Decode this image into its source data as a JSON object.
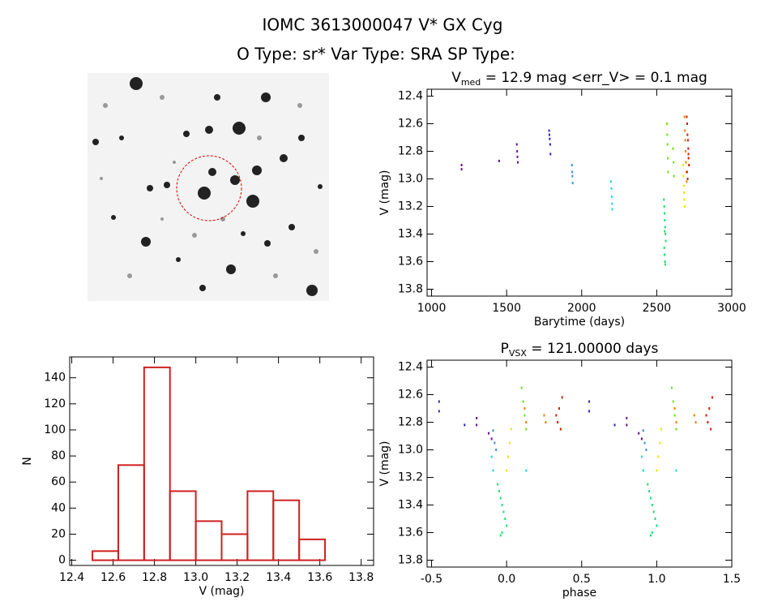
{
  "title": "IOMC 3613000047    V* GX Cyg",
  "subtitle": "O Type: sr*  Var Type: SRA  SP Type:",
  "chart_data": [
    {
      "type": "scatter",
      "title": [
        "V",
        "med",
        " = 12.9 mag <err_V> = 0.1 mag"
      ],
      "xlabel": "Barytime (days)",
      "ylabel": "V (mag)",
      "xlim": [
        970,
        3000
      ],
      "xticks": [
        1000,
        1500,
        2000,
        2500,
        3000
      ],
      "ylim": [
        13.85,
        12.35
      ],
      "yticks": [
        12.4,
        12.6,
        12.8,
        {
          "value": 13,
          "label": "13.0"
        },
        13.2,
        13.4,
        13.6,
        13.8
      ],
      "series": [
        {
          "color": "#6a1090",
          "x": [
            1200,
            1200,
            1450,
            1568,
            1570,
            1572,
            1575
          ],
          "values": [
            12.9,
            12.93,
            12.87,
            12.75,
            12.8,
            12.84,
            12.88
          ]
        },
        {
          "color": "#2828c8",
          "x": [
            1783,
            1785,
            1787,
            1790,
            1792
          ],
          "values": [
            12.65,
            12.68,
            12.71,
            12.75,
            12.82
          ]
        },
        {
          "color": "#3a90e0",
          "x": [
            1935,
            1937,
            1938,
            1940
          ],
          "values": [
            12.9,
            12.95,
            12.98,
            13.03
          ]
        },
        {
          "color": "#20d8e0",
          "x": [
            2195,
            2198,
            2200,
            2202,
            2204
          ],
          "values": [
            13.02,
            13.07,
            13.13,
            13.18,
            13.22
          ]
        },
        {
          "color": "#20e070",
          "x": [
            2548,
            2550,
            2552,
            2554,
            2556,
            2558,
            2560,
            2550,
            2552,
            2555,
            2557,
            2553
          ],
          "values": [
            13.15,
            13.2,
            13.25,
            13.3,
            13.35,
            13.4,
            13.45,
            13.5,
            13.55,
            13.6,
            13.62,
            13.38
          ]
        },
        {
          "color": "#70e020",
          "x": [
            2568,
            2570,
            2572,
            2574,
            2576,
            2608,
            2612,
            2615
          ],
          "values": [
            12.6,
            12.68,
            12.75,
            12.85,
            12.95,
            12.78,
            12.88,
            12.98
          ]
        },
        {
          "color": "#e8e800",
          "x": [
            2675,
            2678,
            2680,
            2682,
            2684,
            2686
          ],
          "values": [
            12.9,
            12.98,
            13.05,
            13.1,
            13.15,
            13.2
          ]
        },
        {
          "color": "#f08000",
          "x": [
            2685,
            2688,
            2690,
            2692,
            2695,
            2698,
            2700
          ],
          "values": [
            12.55,
            12.65,
            12.72,
            12.8,
            12.88,
            12.95,
            13.02
          ]
        },
        {
          "color": "#d02000",
          "x": [
            2700,
            2703,
            2705,
            2708,
            2710,
            2712,
            2715,
            2702,
            2706,
            2711
          ],
          "values": [
            12.55,
            12.6,
            12.68,
            12.72,
            12.78,
            12.85,
            12.9,
            12.95,
            13.0,
            12.82
          ]
        }
      ]
    },
    {
      "type": "histogram",
      "xlabel": "V (mag)",
      "ylabel": "N",
      "color": "#d02020",
      "xlim": [
        12.39,
        13.86
      ],
      "xticks": [
        12.4,
        12.6,
        12.8,
        {
          "value": 13,
          "label": "13.0"
        },
        13.2,
        13.4,
        13.6,
        13.8
      ],
      "ylim": [
        -4,
        156
      ],
      "yticks": [
        0,
        20,
        40,
        60,
        80,
        100,
        120,
        140
      ],
      "bins": [
        12.5,
        12.625,
        12.75,
        12.875,
        13,
        13.125,
        13.25,
        13.375,
        13.5,
        13.625
      ],
      "values": [
        7,
        73,
        148,
        53,
        30,
        20,
        53,
        46,
        16
      ]
    },
    {
      "type": "scatter",
      "title": [
        "P",
        "VSX",
        " = 121.00000 days"
      ],
      "xlabel": "phase",
      "ylabel": "V (mag)",
      "xlim": [
        -0.53,
        1.5
      ],
      "xticks": [
        -0.5,
        {
          "value": 0,
          "label": "0.0"
        },
        0.5,
        {
          "value": 1,
          "label": "1.0"
        },
        1.5
      ],
      "ylim": [
        13.85,
        12.35
      ],
      "yticks": [
        12.4,
        12.6,
        12.8,
        {
          "value": 13,
          "label": "13.0"
        },
        13.2,
        13.4,
        13.6,
        13.8
      ],
      "series": [
        {
          "color": "#2828c8",
          "x": [
            -0.45,
            -0.45,
            -0.28,
            0.55,
            0.55,
            0.72
          ],
          "values": [
            12.65,
            12.72,
            12.82,
            12.65,
            12.72,
            12.82
          ]
        },
        {
          "color": "#6a1090",
          "x": [
            -0.2,
            -0.2,
            -0.12,
            -0.1,
            0.8,
            0.8,
            0.88,
            0.9
          ],
          "values": [
            12.77,
            12.82,
            12.88,
            12.92,
            12.77,
            12.82,
            12.88,
            12.92
          ]
        },
        {
          "color": "#3a90e0",
          "x": [
            -0.09,
            -0.08,
            -0.07,
            0.91,
            0.92,
            0.93
          ],
          "values": [
            12.86,
            12.95,
            13.0,
            12.86,
            12.95,
            13.0
          ]
        },
        {
          "color": "#20d8e0",
          "x": [
            -0.1,
            -0.09,
            0.13,
            0.9,
            0.91,
            1.13
          ],
          "values": [
            13.05,
            13.15,
            13.15,
            13.05,
            13.15,
            13.15
          ]
        },
        {
          "color": "#20e070",
          "x": [
            -0.06,
            -0.05,
            -0.04,
            -0.03,
            -0.02,
            -0.01,
            0.0,
            -0.03,
            -0.04,
            0.94,
            0.95,
            0.96,
            0.97,
            0.98,
            0.99,
            1.0,
            0.97,
            0.96
          ],
          "values": [
            13.25,
            13.3,
            13.35,
            13.4,
            13.45,
            13.5,
            13.55,
            13.6,
            13.62,
            13.25,
            13.3,
            13.35,
            13.4,
            13.45,
            13.5,
            13.55,
            13.6,
            13.62
          ]
        },
        {
          "color": "#e8e800",
          "x": [
            0.0,
            0.01,
            0.02,
            0.03,
            1.0,
            1.01,
            1.02,
            1.03
          ],
          "values": [
            13.15,
            13.05,
            12.95,
            12.85,
            13.15,
            13.05,
            12.95,
            12.85
          ]
        },
        {
          "color": "#70e020",
          "x": [
            0.1,
            0.11,
            0.12,
            0.13,
            1.1,
            1.11,
            1.12,
            1.13
          ],
          "values": [
            12.55,
            12.65,
            12.75,
            12.85,
            12.55,
            12.65,
            12.75,
            12.85
          ]
        },
        {
          "color": "#f08000",
          "x": [
            0.12,
            0.13,
            0.25,
            0.26,
            1.12,
            1.13,
            1.25,
            1.26
          ],
          "values": [
            12.7,
            12.8,
            12.75,
            12.8,
            12.7,
            12.8,
            12.75,
            12.8
          ]
        },
        {
          "color": "#d02000",
          "x": [
            0.33,
            0.34,
            0.35,
            0.36,
            0.37,
            1.33,
            1.34,
            1.35,
            1.36,
            1.37
          ],
          "values": [
            12.75,
            12.8,
            12.7,
            12.85,
            12.62,
            12.75,
            12.8,
            12.7,
            12.85,
            12.62
          ]
        }
      ]
    }
  ]
}
